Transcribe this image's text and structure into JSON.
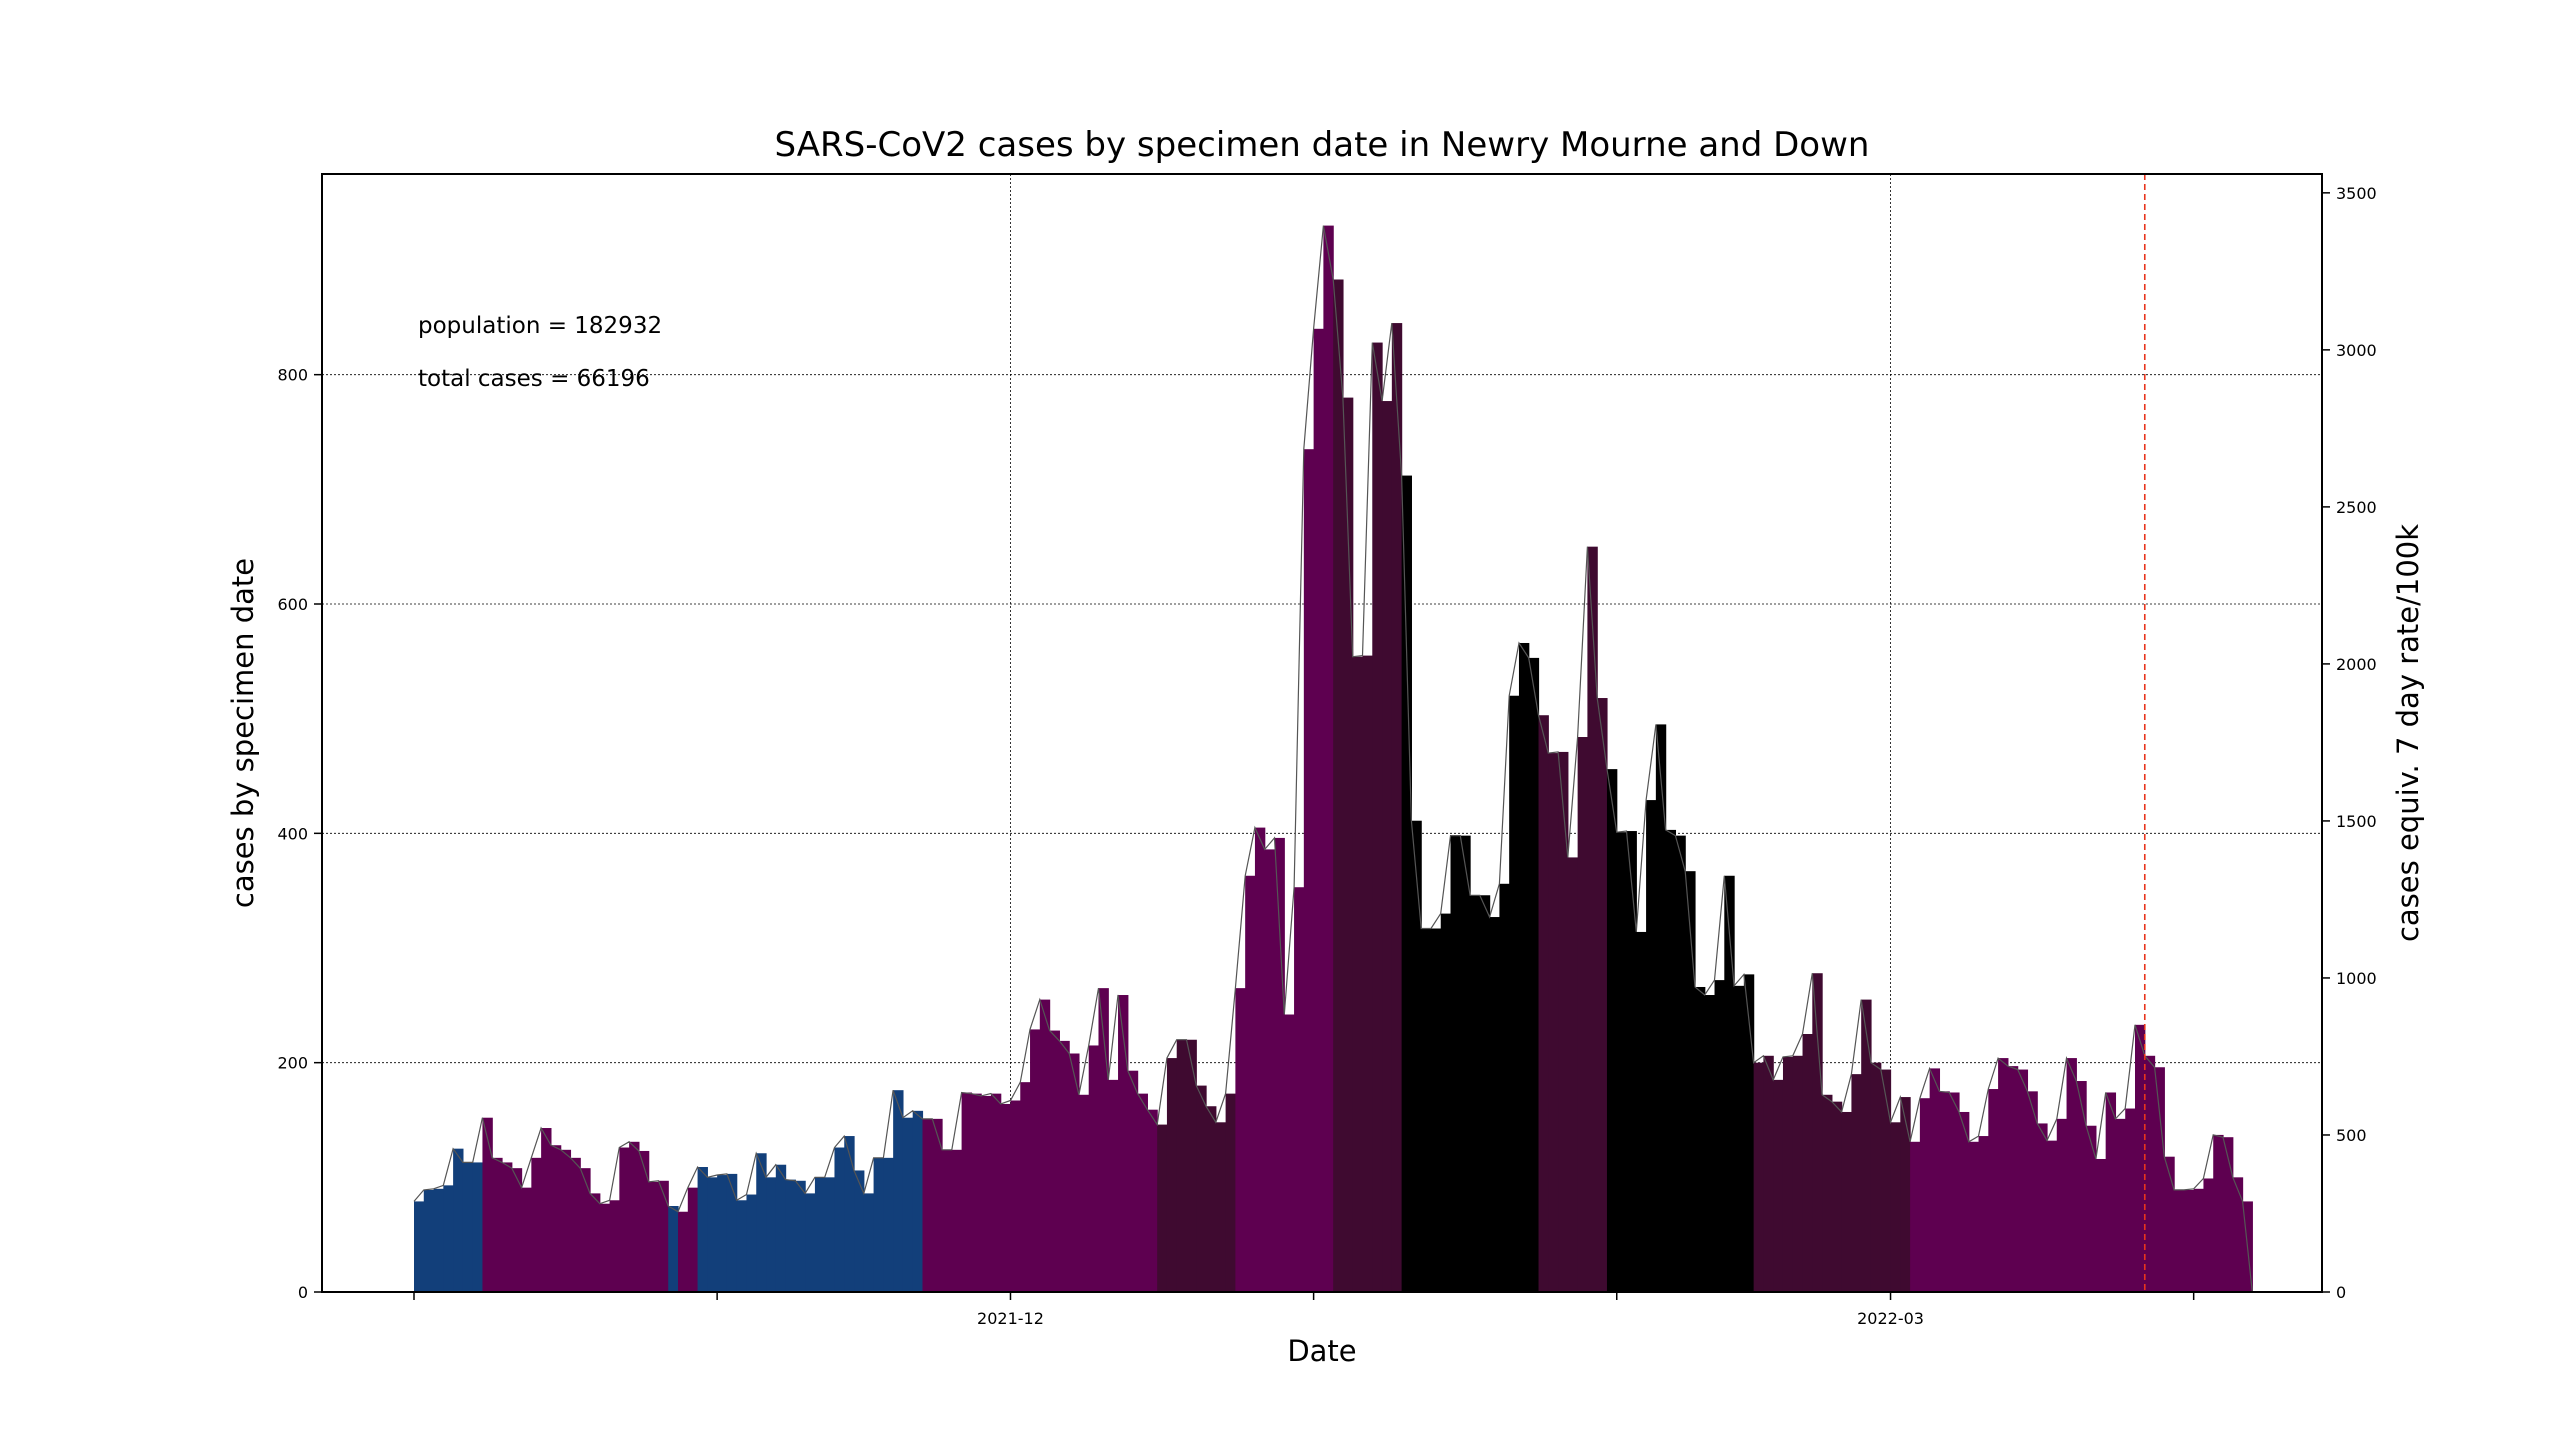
{
  "chart_data": {
    "type": "bar",
    "title": "SARS-CoV2 cases by specimen date in Newry Mourne and Down",
    "xlabel": "Date",
    "ylabel": "cases by specimen date",
    "y2label": "cases equiv. 7 day rate/100k",
    "annotations": [
      "population = 182932",
      "total cases = 66196"
    ],
    "population": 182932,
    "total_cases": 66196,
    "ylim": [
      0,
      975
    ],
    "y_ticks": [
      0,
      200,
      400,
      600,
      800
    ],
    "y2lim": [
      0,
      3560
    ],
    "y2_ticks": [
      0,
      500,
      1000,
      1500,
      2000,
      2500,
      3000,
      3500
    ],
    "x_start_date": "2021-10-01",
    "x_end_date": "2022-04-04",
    "x_ticks": [
      {
        "date": "2021-10-01",
        "label": ""
      },
      {
        "date": "2021-11-01",
        "label": ""
      },
      {
        "date": "2021-12-01",
        "label": "2021-12"
      },
      {
        "date": "2022-01-01",
        "label": ""
      },
      {
        "date": "2022-02-01",
        "label": ""
      },
      {
        "date": "2022-03-01",
        "label": "2022-03"
      },
      {
        "date": "2022-04-01",
        "label": ""
      }
    ],
    "grid": true,
    "marker_line_date": "2022-03-27",
    "marker_line_color": "#e8341c",
    "trend_line_color": "#555555",
    "values": [
      79,
      89,
      90,
      93,
      125,
      113,
      113,
      152,
      117,
      113,
      108,
      91,
      117,
      143,
      128,
      124,
      117,
      108,
      86,
      77,
      80,
      126,
      131,
      123,
      96,
      97,
      75,
      70,
      91,
      109,
      100,
      102,
      103,
      80,
      85,
      121,
      100,
      111,
      98,
      97,
      86,
      100,
      100,
      126,
      136,
      106,
      86,
      117,
      117,
      176,
      152,
      158,
      151,
      151,
      124,
      124,
      174,
      173,
      171,
      173,
      164,
      167,
      183,
      229,
      255,
      228,
      219,
      208,
      172,
      215,
      265,
      185,
      259,
      193,
      173,
      159,
      146,
      204,
      220,
      220,
      180,
      162,
      148,
      173,
      265,
      363,
      405,
      386,
      396,
      242,
      353,
      735,
      840,
      930,
      883,
      780,
      554,
      555,
      828,
      777,
      845,
      712,
      411,
      317,
      317,
      330,
      398,
      398,
      346,
      346,
      327,
      356,
      520,
      566,
      553,
      503,
      470,
      471,
      379,
      484,
      650,
      518,
      456,
      401,
      402,
      314,
      429,
      495,
      403,
      398,
      367,
      266,
      259,
      272,
      363,
      267,
      277,
      200,
      206,
      185,
      205,
      206,
      225,
      278,
      172,
      166,
      157,
      190,
      255,
      200,
      194,
      148,
      170,
      131,
      169,
      195,
      175,
      174,
      157,
      131,
      136,
      177,
      204,
      197,
      194,
      175,
      147,
      132,
      151,
      204,
      184,
      145,
      116,
      174,
      151,
      160,
      233,
      206,
      196,
      118,
      89,
      89,
      90,
      99,
      137,
      135,
      100,
      79
    ],
    "bar_color_codes": "BBBBBBBPPPPPPPPPPPPPPPPPPPBPPBBBBBBBBBBBBBBBBBBBBBBBPPPPPPPPPPPPPPPPPPPPPPPPDDDDDDDDPPPPPPPPPPDDDDDDDKKKKKKKKKKKKKKDDDDDDDKKKKKKKKKKKKKKKDDDDDDDDDDDDDDDDPPPPPPPPPPPPPPPPPPPPPPPPPPPPPPPPPPPPPPLLLL",
    "colors": {
      "B": "#123f7a",
      "P": "#5e0050",
      "D": "#3f0a30",
      "K": "#000000",
      "L": "#ad7fad"
    }
  }
}
